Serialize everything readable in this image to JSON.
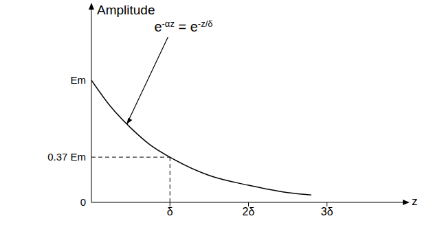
{
  "chart_data": {
    "type": "line",
    "y_label": "Amplitude",
    "x_label": "z",
    "x": [
      0,
      0.25,
      0.5,
      0.75,
      1,
      1.5,
      2,
      2.5,
      2.8
    ],
    "values": [
      1,
      0.78,
      0.61,
      0.47,
      0.37,
      0.22,
      0.14,
      0.08,
      0.06
    ],
    "color": "#000000",
    "xlim": [
      0,
      4
    ],
    "ylim": [
      0,
      1.6
    ],
    "xticks": [
      {
        "value": 1,
        "label": "δ"
      },
      {
        "value": 2,
        "label": "2δ"
      },
      {
        "value": 3,
        "label": "3δ"
      }
    ],
    "yticks": [
      0,
      {
        "value": 0.37,
        "label": "0.37 Em"
      },
      {
        "value": 1,
        "label": "Em"
      }
    ],
    "grid": false,
    "reference_point": {
      "x": 1,
      "y": 0.37
    },
    "annotation": {
      "parts": [
        {
          "text": "e",
          "sup": false
        },
        {
          "text": "-αz",
          "sup": true
        },
        {
          "text": " = e",
          "sup": false
        },
        {
          "text": "-z/δ",
          "sup": true
        }
      ],
      "x": 0.45,
      "y": 0.64
    }
  }
}
